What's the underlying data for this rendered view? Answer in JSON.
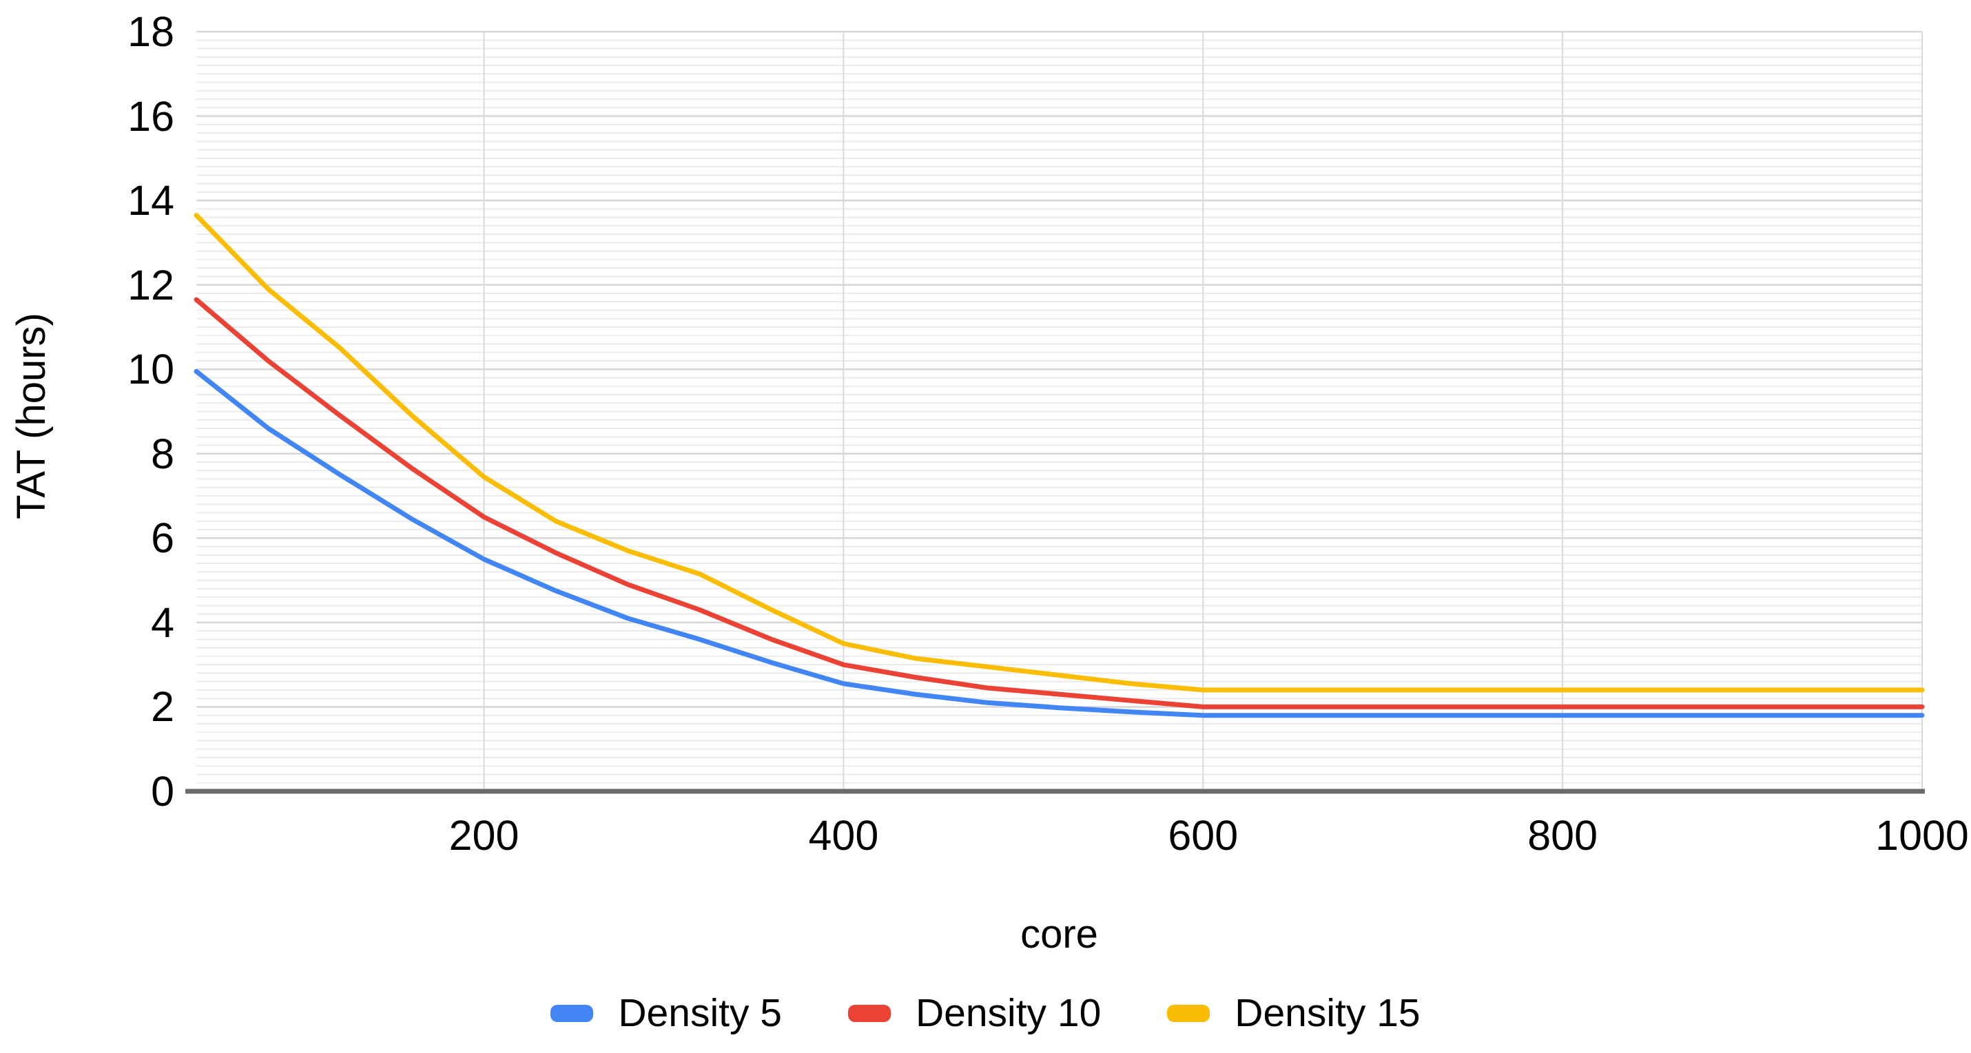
{
  "chart_data": {
    "type": "line",
    "title": "",
    "xlabel": "core",
    "ylabel": "TAT (hours)",
    "xlim": [
      40,
      1000
    ],
    "ylim": [
      0,
      18
    ],
    "x_ticks": [
      200,
      400,
      600,
      800,
      1000
    ],
    "y_ticks": [
      0,
      2,
      4,
      6,
      8,
      10,
      12,
      14,
      16,
      18
    ],
    "y_minor_step": 0.2,
    "grid": "on",
    "legend_position": "bottom-center",
    "x": [
      40,
      80,
      120,
      160,
      200,
      240,
      280,
      320,
      360,
      400,
      440,
      480,
      520,
      560,
      600,
      640,
      680,
      720,
      760,
      800,
      840,
      880,
      920,
      960,
      1000
    ],
    "series": [
      {
        "name": "Density 5",
        "color": "#4285F4",
        "values": [
          9.95,
          8.6,
          7.5,
          6.45,
          5.5,
          4.75,
          4.1,
          3.6,
          3.05,
          2.55,
          2.3,
          2.1,
          1.98,
          1.88,
          1.8,
          1.8,
          1.8,
          1.8,
          1.8,
          1.8,
          1.8,
          1.8,
          1.8,
          1.8,
          1.8
        ]
      },
      {
        "name": "Density 10",
        "color": "#EA4335",
        "values": [
          11.65,
          10.2,
          8.9,
          7.65,
          6.5,
          5.65,
          4.9,
          4.3,
          3.6,
          3.0,
          2.7,
          2.45,
          2.3,
          2.15,
          2.0,
          2.0,
          2.0,
          2.0,
          2.0,
          2.0,
          2.0,
          2.0,
          2.0,
          2.0,
          2.0
        ]
      },
      {
        "name": "Density 15",
        "color": "#FBBC04",
        "values": [
          13.65,
          11.9,
          10.5,
          8.9,
          7.45,
          6.4,
          5.7,
          5.15,
          4.3,
          3.5,
          3.15,
          2.95,
          2.75,
          2.55,
          2.4,
          2.4,
          2.4,
          2.4,
          2.4,
          2.4,
          2.4,
          2.4,
          2.4,
          2.4,
          2.4
        ]
      }
    ],
    "colors": {
      "background": "#ffffff",
      "axis_line": "#6b6b6b",
      "major_grid": "#d6d6d6",
      "minor_grid": "#ebebeb",
      "vertical_grid": "#d9d9d9",
      "text": "#000000"
    }
  }
}
